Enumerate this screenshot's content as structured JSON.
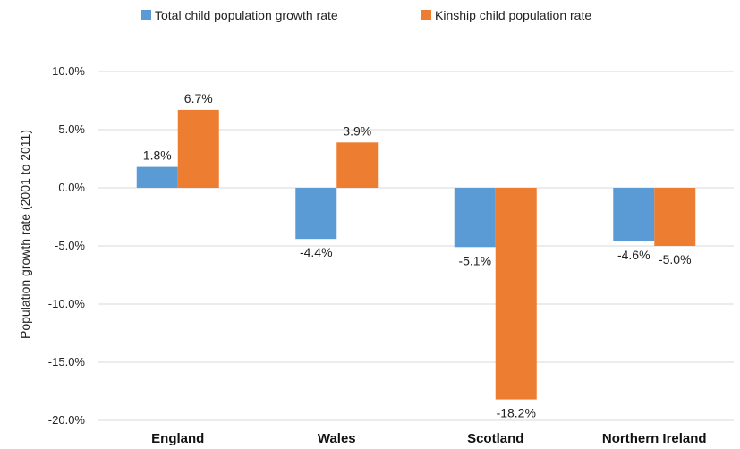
{
  "chart_data": {
    "type": "bar",
    "categories": [
      "England",
      "Wales",
      "Scotland",
      "Northern Ireland"
    ],
    "series": [
      {
        "name": "Total child population growth rate",
        "color": "#5b9bd5",
        "values": [
          1.8,
          -4.4,
          -5.1,
          -4.6
        ],
        "labels": [
          "1.8%",
          "-4.4%",
          "-5.1%",
          "-4.6%"
        ]
      },
      {
        "name": "Kinship child population rate",
        "color": "#ed7d31",
        "values": [
          6.7,
          3.9,
          -18.2,
          -5.0
        ],
        "labels": [
          "6.7%",
          "3.9%",
          "-18.2%",
          "-5.0%"
        ]
      }
    ],
    "ylabel": "Population growth rate (2001 to 2011)",
    "ylim": [
      -20,
      10
    ],
    "yticks": [
      10,
      5,
      0,
      -5,
      -10,
      -15,
      -20
    ],
    "ytick_labels": [
      "10.0%",
      "5.0%",
      "0.0%",
      "-5.0%",
      "-10.0%",
      "-15.0%",
      "-20.0%"
    ],
    "legend_position": "top",
    "grid": true
  }
}
